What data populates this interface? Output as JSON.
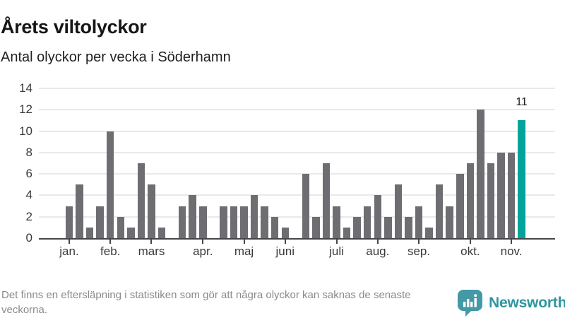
{
  "header": {
    "title": "Årets viltolyckor",
    "subtitle": "Antal olyckor per vecka i Söderhamn"
  },
  "chart_data": {
    "type": "bar",
    "title": "Årets viltolyckor",
    "subtitle": "Antal olyckor per vecka i Söderhamn",
    "values": [
      3,
      5,
      1,
      3,
      10,
      2,
      1,
      7,
      5,
      1,
      0,
      3,
      4,
      3,
      0,
      3,
      3,
      3,
      4,
      3,
      2,
      1,
      0,
      6,
      2,
      7,
      3,
      1,
      2,
      3,
      4,
      2,
      5,
      2,
      3,
      1,
      5,
      3,
      6,
      7,
      12,
      7,
      8,
      8,
      11
    ],
    "highlight_index": 44,
    "highlight_value_label": "11",
    "y_ticks": [
      0,
      2,
      4,
      6,
      8,
      10,
      12,
      14
    ],
    "ylim": [
      0,
      14
    ],
    "x_tick_labels": [
      "jan.",
      "feb.",
      "mars",
      "apr.",
      "maj",
      "juni",
      "juli",
      "aug.",
      "sep.",
      "okt.",
      "nov."
    ],
    "x_tick_indices": [
      0,
      4,
      8,
      13,
      17,
      21,
      26,
      30,
      34,
      39,
      43
    ],
    "grid": "horizontal",
    "legend": "none",
    "bar_color": "#6e6d72",
    "highlight_color": "#00a49b"
  },
  "footer": {
    "note": "Det finns en eftersläpning i statistiken som gör att några olyckor kan saknas de senaste veckorna.",
    "brand": "Newsworthy",
    "brand_color": "#2e96a0",
    "brand_icon": "speech-bubble-bar-chart"
  }
}
